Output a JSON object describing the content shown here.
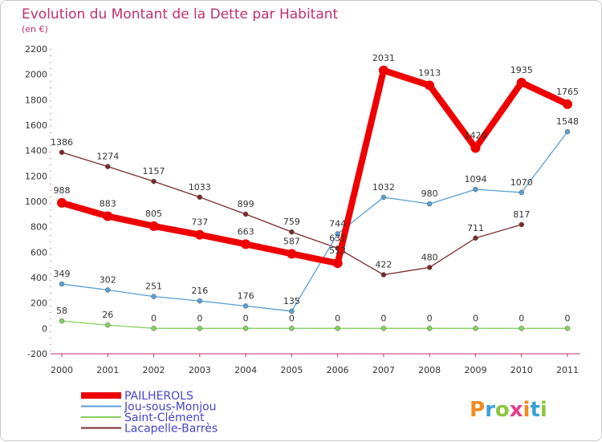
{
  "chart_data": {
    "type": "line",
    "title": "Evolution du Montant de la Dette par Habitant",
    "subtitle": "(en €)",
    "x": [
      2000,
      2001,
      2002,
      2003,
      2004,
      2005,
      2006,
      2007,
      2008,
      2009,
      2010,
      2011
    ],
    "ylim": [
      -200,
      2200
    ],
    "yticks": [
      -200,
      0,
      200,
      400,
      600,
      800,
      1000,
      1200,
      1400,
      1600,
      1800,
      2000,
      2200
    ],
    "grid": false,
    "legend_position": "bottom-left",
    "series": [
      {
        "name": "PAILHEROLS",
        "color": "#ee0000",
        "width": 8,
        "marker": 6,
        "values": [
          988,
          883,
          805,
          737,
          663,
          587,
          513,
          2031,
          1913,
          1420,
          1935,
          1765
        ],
        "labels": [
          "988",
          "883",
          "805",
          "737",
          "663",
          "587",
          "513",
          "2031",
          "1913",
          "1420",
          "1935",
          "1765"
        ]
      },
      {
        "name": "Jou-sous-Monjou",
        "color": "#5a9fd4",
        "width": 1.3,
        "marker": 3,
        "values": [
          349,
          302,
          251,
          216,
          176,
          135,
          744,
          1032,
          980,
          1094,
          1070,
          1548
        ],
        "labels": [
          "349",
          "302",
          "251",
          "216",
          "176",
          "135",
          "744",
          "1032",
          "980",
          "1094",
          "1070",
          "1548"
        ]
      },
      {
        "name": "Saint-Clément",
        "color": "#88d060",
        "width": 1.3,
        "marker": 3,
        "values": [
          58,
          26,
          0,
          0,
          0,
          0,
          0,
          0,
          0,
          0,
          0,
          0
        ],
        "labels": [
          "58",
          "26",
          "0",
          "0",
          "0",
          "0",
          "0",
          "0",
          "0",
          "0",
          "0",
          "0"
        ]
      },
      {
        "name": "Lacapelle-Barrès",
        "color": "#7a2a2a",
        "width": 1.3,
        "marker": 3,
        "values": [
          1386,
          1274,
          1157,
          1033,
          899,
          759,
          631,
          422,
          480,
          711,
          817,
          null
        ],
        "labels": [
          "1386",
          "1274",
          "1157",
          "1033",
          "899",
          "759",
          "631",
          "422",
          "480",
          "711",
          "817",
          null
        ]
      }
    ]
  },
  "logo": {
    "text": "Proxiti",
    "colors": [
      "#f08a1e",
      "#3aa0d8",
      "#8bc53f",
      "#e63c8a",
      "#f08a1e",
      "#3aa0d8",
      "#8bc53f"
    ]
  }
}
